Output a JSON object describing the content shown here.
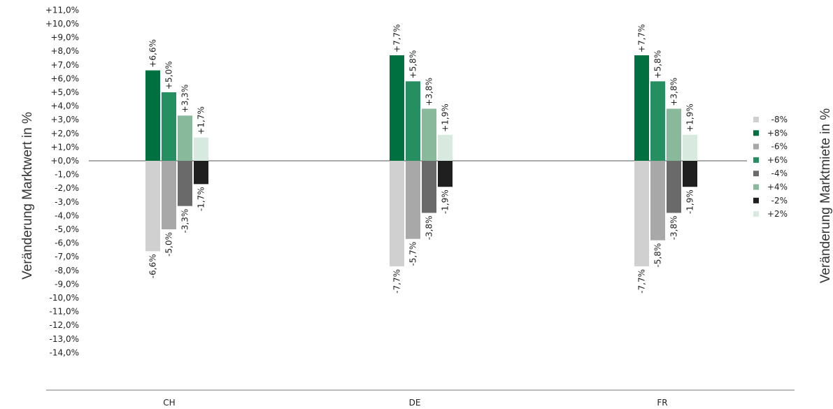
{
  "chart_data": {
    "type": "bar",
    "categories": [
      "CH",
      "DE",
      "FR"
    ],
    "yticks": [
      "+11,0%",
      "+10,0%",
      "+9,0%",
      "+8,0%",
      "+7,0%",
      "+6,0%",
      "+5,0%",
      "+4,0%",
      "+3,0%",
      "+2,0%",
      "+1,0%",
      "+0,0%",
      "-1,0%",
      "-2,0%",
      "-3,0%",
      "-4,0%",
      "-5,0%",
      "-6,0%",
      "-7,0%",
      "-8,0%",
      "-9,0%",
      "-10,0%",
      "-11,0%",
      "-12,0%",
      "-13,0%",
      "-14,0%"
    ],
    "ylim": [
      -14,
      11
    ],
    "ylabel": "Veränderung Marktwert in %",
    "ylabel_right": "Veränderung Marktmiete in %",
    "legend_position": "right",
    "series": [
      {
        "name": "-8%",
        "color": "#d0d0d0",
        "values": [
          -6.6,
          -7.7,
          -7.7
        ],
        "labels": [
          "-6,6%",
          "-7,7%",
          "-7,7%"
        ]
      },
      {
        "name": "+8%",
        "color": "#007040",
        "values": [
          6.6,
          7.7,
          7.7
        ],
        "labels": [
          "+6,6%",
          "+7,7%",
          "+7,7%"
        ]
      },
      {
        "name": "-6%",
        "color": "#a8a8a8",
        "values": [
          -5.0,
          -5.7,
          -5.8
        ],
        "labels": [
          "-5,0%",
          "-5,7%",
          "-5,8%"
        ]
      },
      {
        "name": "+6%",
        "color": "#258f62",
        "values": [
          5.0,
          5.8,
          5.8
        ],
        "labels": [
          "+5,0%",
          "+5,8%",
          "+5,8%"
        ]
      },
      {
        "name": "-4%",
        "color": "#6a6a6a",
        "values": [
          -3.3,
          -3.8,
          -3.8
        ],
        "labels": [
          "-3,3%",
          "-3,8%",
          "-3,8%"
        ]
      },
      {
        "name": "+4%",
        "color": "#88b99a",
        "values": [
          3.3,
          3.8,
          3.8
        ],
        "labels": [
          "+3,3%",
          "+3,8%",
          "+3,8%"
        ]
      },
      {
        "name": "-2%",
        "color": "#1f1f1f",
        "values": [
          -1.7,
          -1.9,
          -1.9
        ],
        "labels": [
          "-1,7%",
          "-1,9%",
          "-1,9%"
        ]
      },
      {
        "name": "+2%",
        "color": "#d8eae0",
        "values": [
          1.7,
          1.9,
          1.9
        ],
        "labels": [
          "+1,7%",
          "+1,9%",
          "+1,9%"
        ]
      }
    ]
  }
}
